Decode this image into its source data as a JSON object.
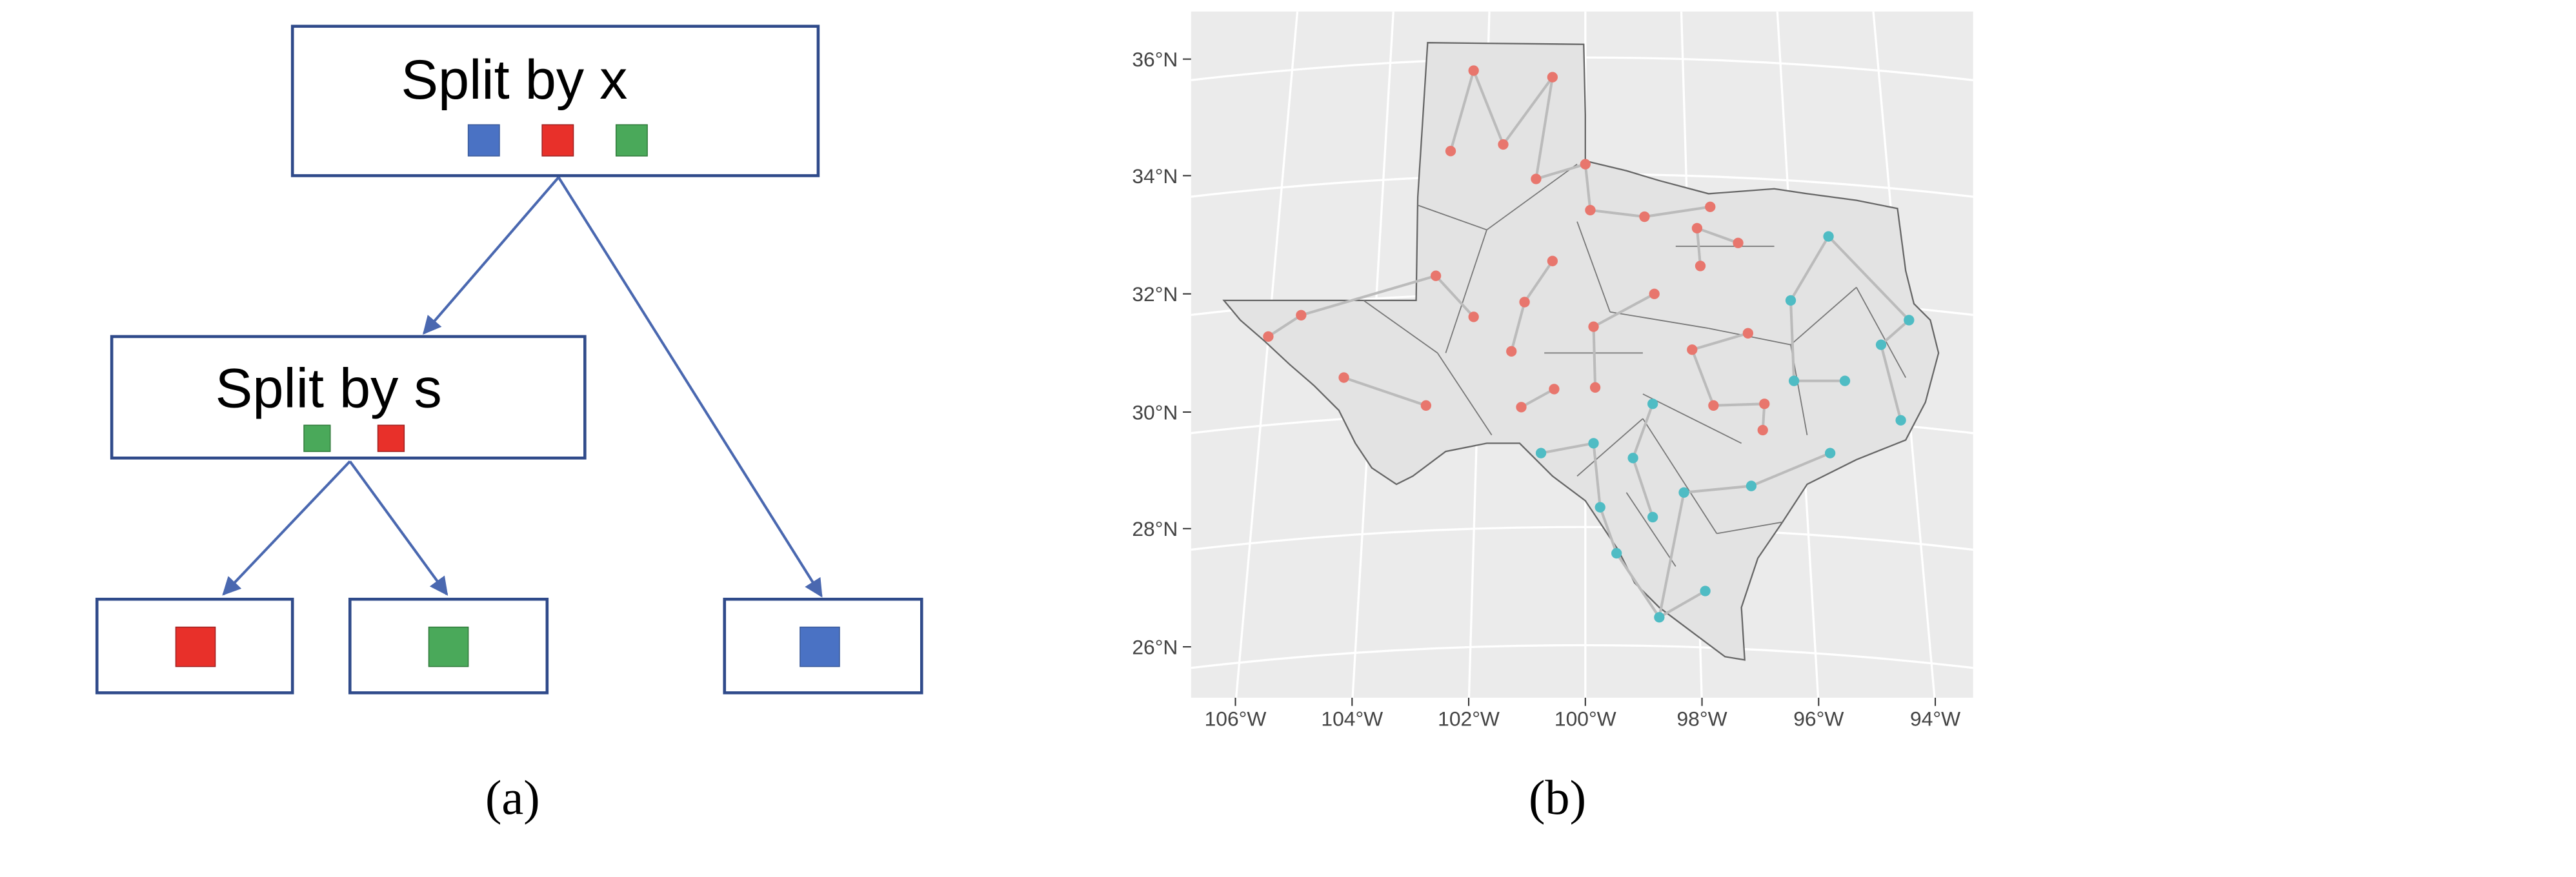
{
  "panel_a": {
    "nodes": [
      {
        "label": "Split by x"
      },
      {
        "label": "Split by s"
      }
    ],
    "caption": "(a)"
  },
  "panel_b": {
    "lat_labels": [
      "36°N",
      "34°N",
      "32°N",
      "30°N",
      "28°N",
      "26°N"
    ],
    "lon_labels": [
      "106°W",
      "104°W",
      "102°W",
      "100°W",
      "98°W",
      "96°W",
      "94°W"
    ],
    "caption": "(b)"
  }
}
